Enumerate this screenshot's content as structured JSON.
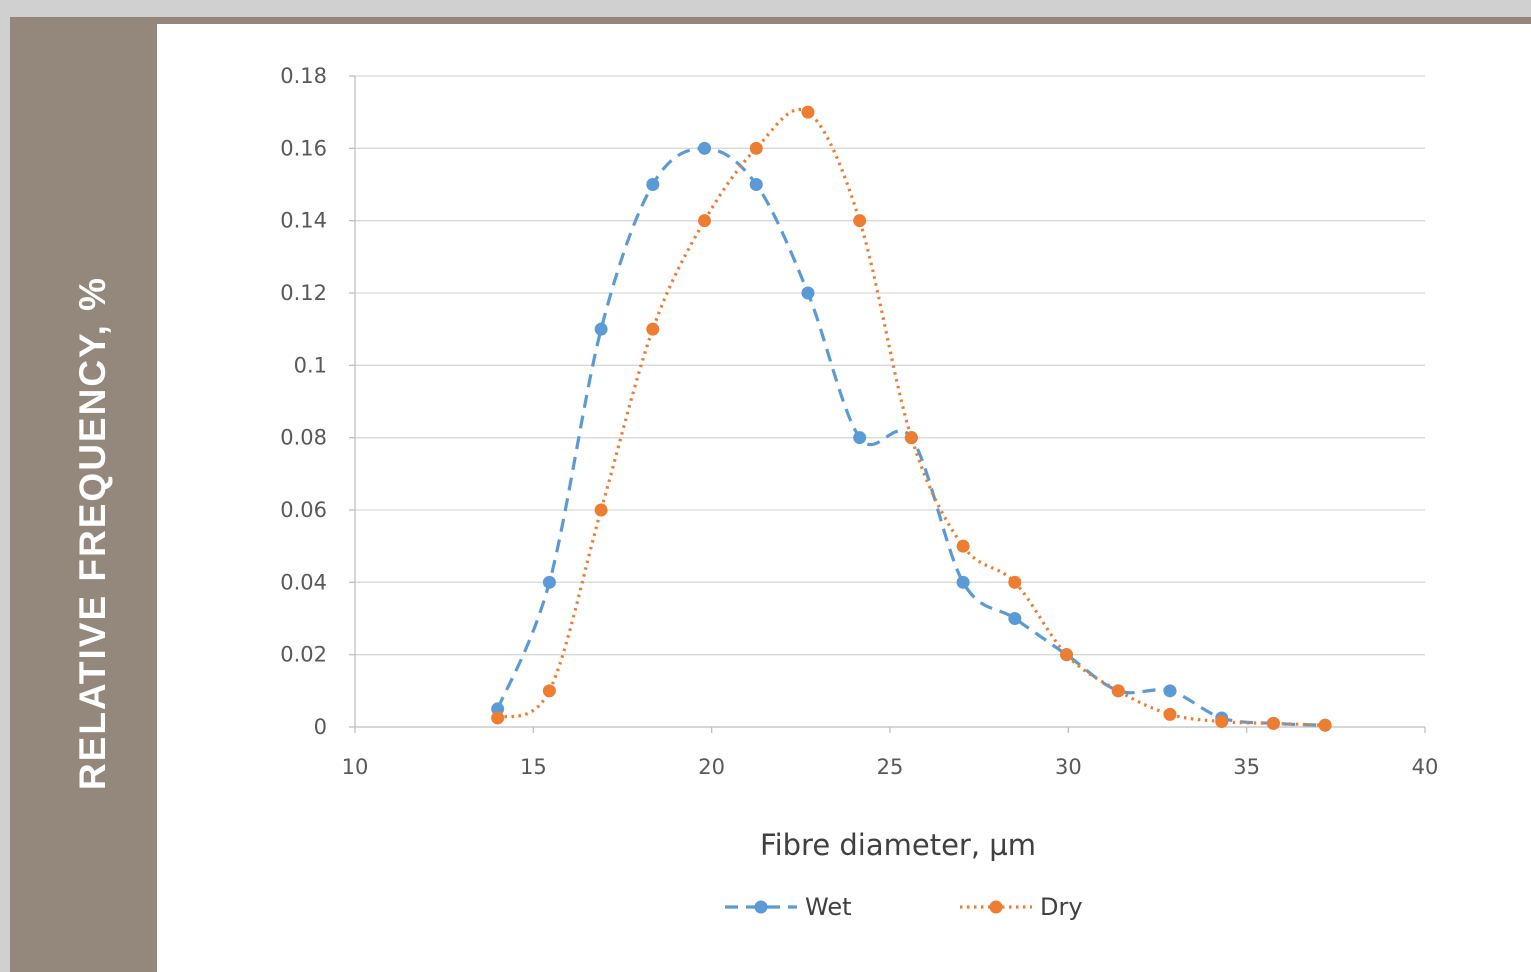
{
  "sidebar": {
    "label": "RELATIVE FREQUENCY, %"
  },
  "colors": {
    "sidebar": "#94877c",
    "wet": "#5b9bd5",
    "dry": "#ed7d31",
    "grid": "#d9d9d9",
    "axis": "#bfbfbf"
  },
  "chart_data": {
    "type": "line",
    "title": "",
    "xlabel": "Fibre diameter, µm",
    "ylabel": "RELATIVE FREQUENCY, %",
    "xlim": [
      10,
      40
    ],
    "ylim": [
      0,
      0.18
    ],
    "xticks": [
      10,
      15,
      20,
      25,
      30,
      35,
      40
    ],
    "xtick_labels": [
      "10",
      "15",
      "20",
      "25",
      "30",
      "35",
      "40"
    ],
    "yticks": [
      0,
      0.02,
      0.04,
      0.06,
      0.08,
      0.1,
      0.12,
      0.14,
      0.16,
      0.18
    ],
    "ytick_labels": [
      "0",
      "0.02",
      "0.04",
      "0.06",
      "0.08",
      "0.1",
      "0.12",
      "0.14",
      "0.16",
      "0.18"
    ],
    "grid": true,
    "legend_position": "bottom",
    "series": [
      {
        "name": "Wet",
        "color": "#5b9bd5",
        "style": "dashed",
        "x": [
          14.0,
          15.45,
          16.9,
          18.35,
          19.8,
          21.25,
          22.7,
          24.15,
          25.6,
          27.05,
          28.5,
          29.95,
          31.4,
          32.85,
          34.3,
          35.75,
          37.2
        ],
        "y": [
          0.005,
          0.04,
          0.11,
          0.15,
          0.16,
          0.15,
          0.12,
          0.08,
          0.08,
          0.04,
          0.03,
          0.02,
          0.01,
          0.01,
          0.0025,
          0.001,
          0.0005
        ]
      },
      {
        "name": "Dry",
        "color": "#ed7d31",
        "style": "dotted",
        "x": [
          14.0,
          15.45,
          16.9,
          18.35,
          19.8,
          21.25,
          22.7,
          24.15,
          25.6,
          27.05,
          28.5,
          29.95,
          31.4,
          32.85,
          34.3,
          35.75,
          37.2
        ],
        "y": [
          0.0025,
          0.01,
          0.06,
          0.11,
          0.14,
          0.16,
          0.17,
          0.14,
          0.08,
          0.05,
          0.04,
          0.02,
          0.01,
          0.0035,
          0.0015,
          0.001,
          0.0005
        ]
      }
    ]
  }
}
